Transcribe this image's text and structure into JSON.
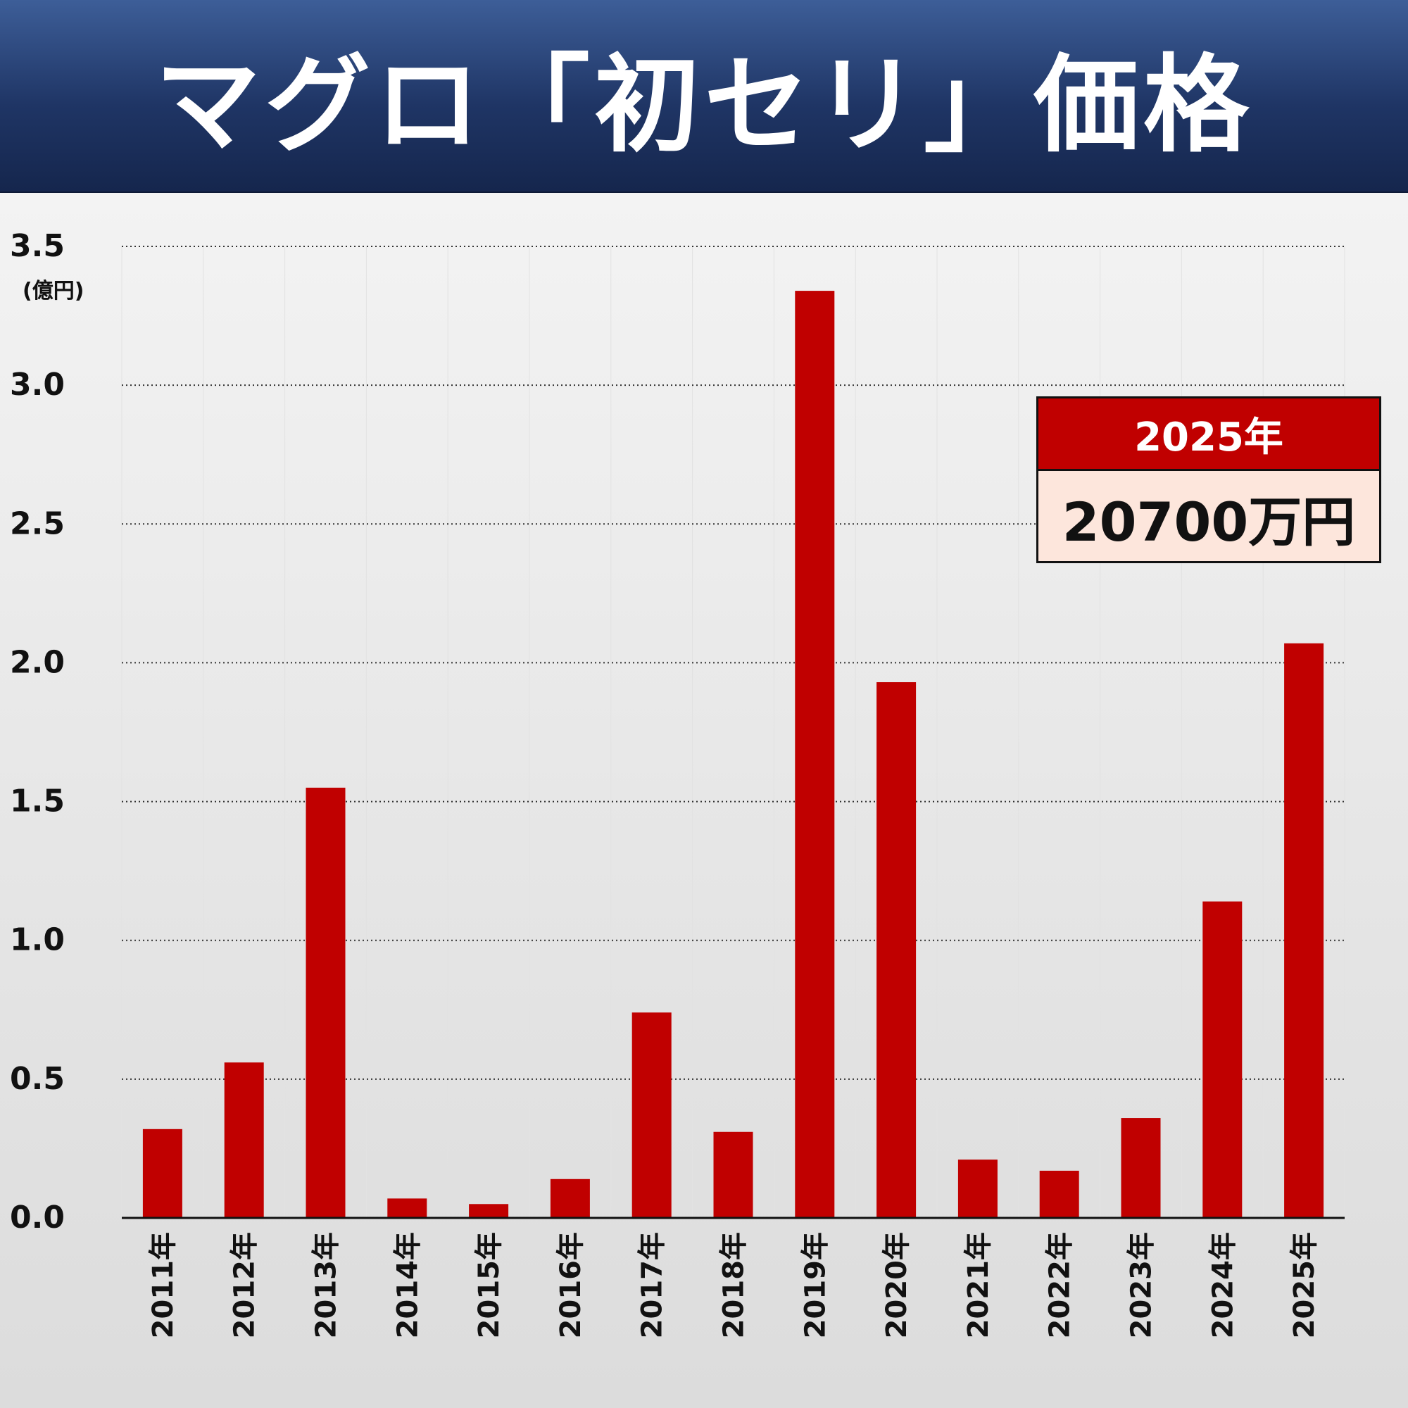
{
  "title": "マグロ「初セリ」価格",
  "callout": {
    "year": "2025年",
    "value": "20700万円"
  },
  "colors": {
    "bar": "#c00000",
    "header": "#1f3565",
    "callout_bg": "#fde6dc"
  },
  "chart_data": {
    "type": "bar",
    "title": "マグロ「初セリ」価格",
    "xlabel": "",
    "ylabel": "(億円)",
    "ylim": [
      0,
      3.5
    ],
    "yticks": [
      "0.0",
      "0.5",
      "1.0",
      "1.5",
      "2.0",
      "2.5",
      "3.0",
      "3.5"
    ],
    "grid": true,
    "categories": [
      "2011年",
      "2012年",
      "2013年",
      "2014年",
      "2015年",
      "2016年",
      "2017年",
      "2018年",
      "2019年",
      "2020年",
      "2021年",
      "2022年",
      "2023年",
      "2024年",
      "2025年"
    ],
    "values": [
      0.32,
      0.56,
      1.55,
      0.07,
      0.05,
      0.14,
      0.74,
      0.31,
      3.34,
      1.93,
      0.21,
      0.17,
      0.36,
      1.14,
      2.07
    ]
  }
}
